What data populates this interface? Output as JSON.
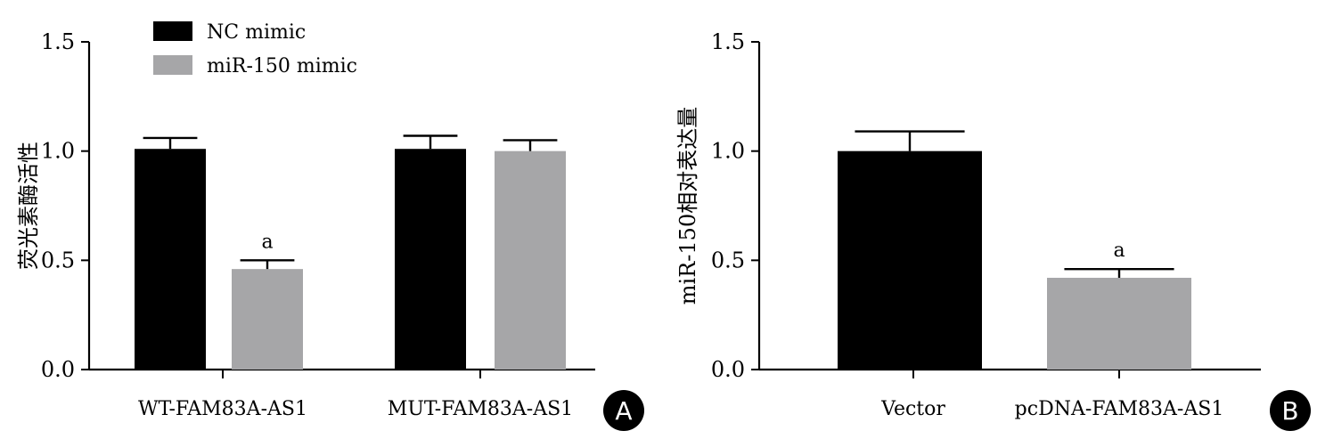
{
  "colors": {
    "series1": "#000000",
    "series2": "#a6a6a8",
    "axis": "#000000",
    "badge_bg": "#000000",
    "badge_text": "#ffffff"
  },
  "chart_data": [
    {
      "type": "bar",
      "panel_label": "A",
      "categories": [
        "WT-FAM83A-AS1",
        "MUT-FAM83A-AS1"
      ],
      "series": [
        {
          "name": "NC mimic",
          "values": [
            1.01,
            1.01
          ],
          "errors": [
            0.05,
            0.06
          ],
          "annotations": [
            "",
            ""
          ]
        },
        {
          "name": "miR-150 mimic",
          "values": [
            0.46,
            1.0
          ],
          "errors": [
            0.04,
            0.05
          ],
          "annotations": [
            "a",
            ""
          ]
        }
      ],
      "xlabel": "",
      "ylabel": "荧光素酶活性",
      "ylim": [
        0,
        1.5
      ],
      "yticks": [
        "0.0",
        "0.5",
        "1.0",
        "1.5"
      ],
      "legend_position": "top-left",
      "grid": false
    },
    {
      "type": "bar",
      "panel_label": "B",
      "categories": [
        "Vector",
        "pcDNA-FAM83A-AS1"
      ],
      "values": [
        1.0,
        0.42
      ],
      "errors": [
        0.09,
        0.04
      ],
      "annotations": [
        "",
        "a"
      ],
      "xlabel": "",
      "ylabel": "miR-150相对表达量",
      "ylim": [
        0,
        1.5
      ],
      "yticks": [
        "0.0",
        "0.5",
        "1.0",
        "1.5"
      ],
      "grid": false
    }
  ]
}
